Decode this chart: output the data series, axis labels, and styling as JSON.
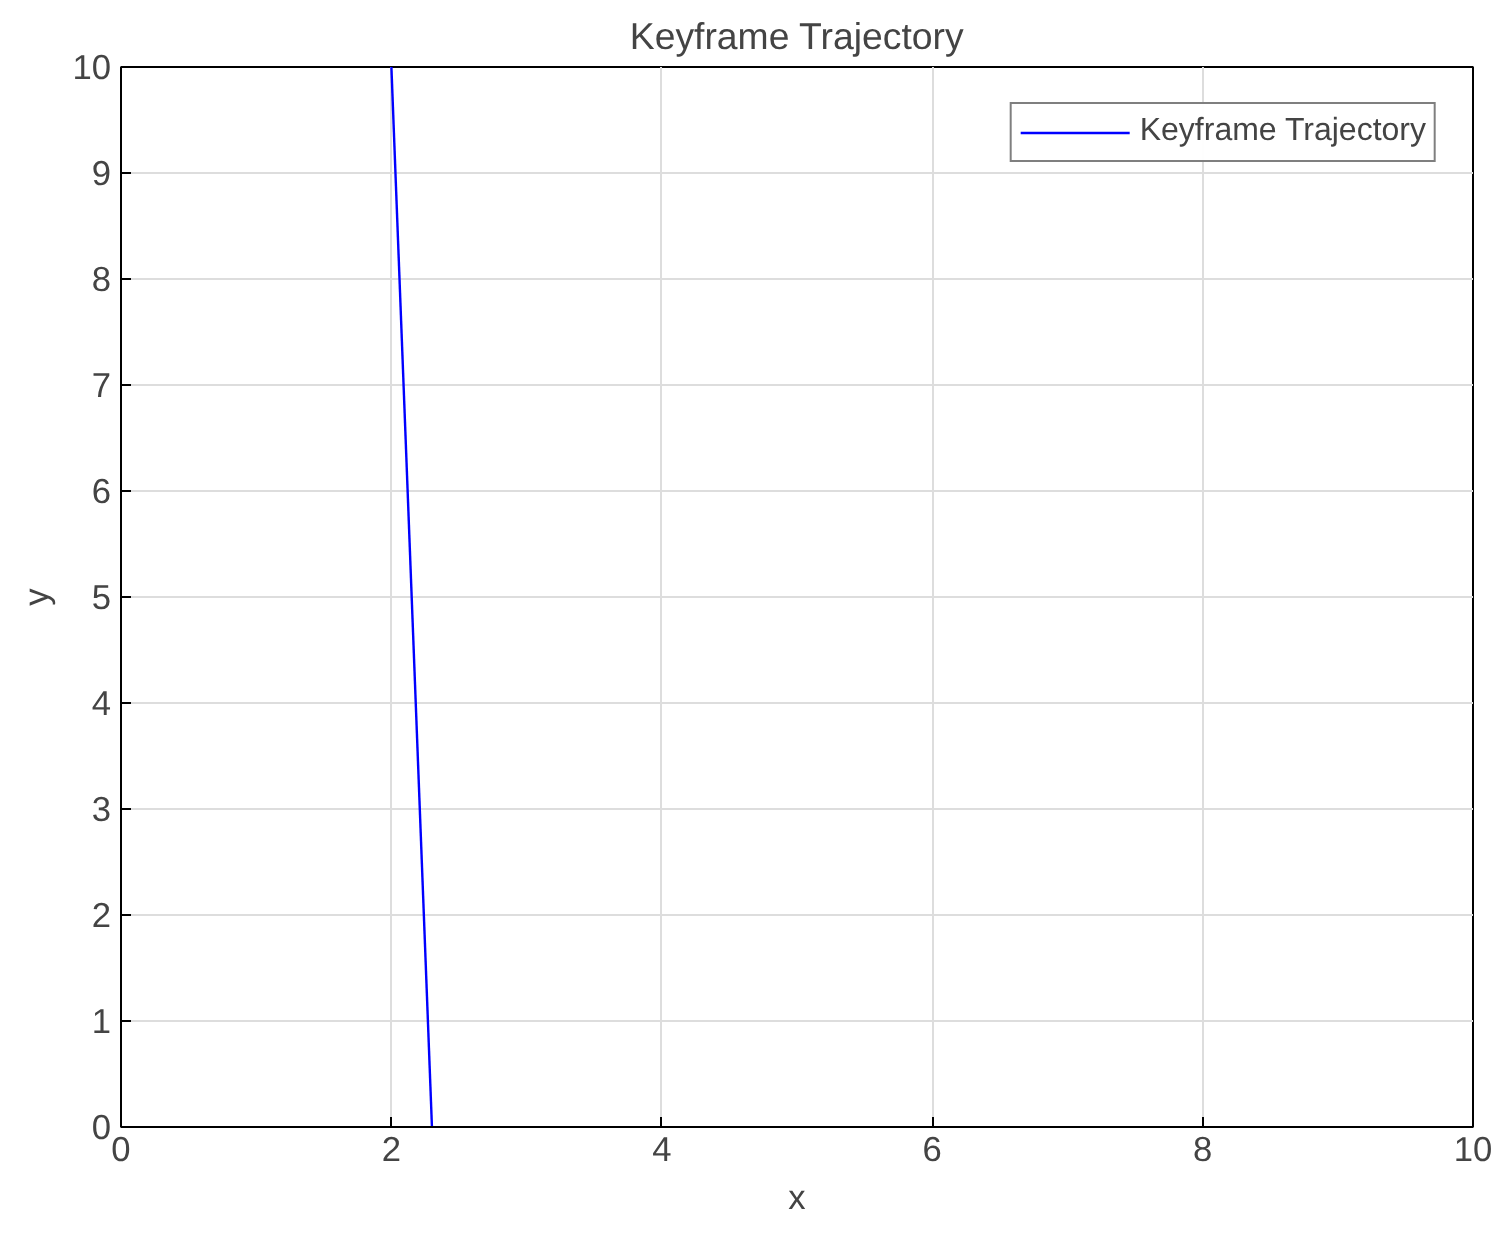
{
  "chart_data": {
    "type": "line",
    "title": "Keyframe Trajectory",
    "xlabel": "x",
    "ylabel": "y",
    "x": [
      2.0,
      2.3
    ],
    "series": [
      {
        "name": "Keyframe Trajectory",
        "color": "#0000ff",
        "values": [
          10,
          0
        ]
      }
    ],
    "xlim": [
      0,
      10
    ],
    "ylim": [
      0,
      10
    ],
    "xticks": [
      0,
      2,
      4,
      6,
      8,
      10
    ],
    "yticks": [
      0,
      1,
      2,
      3,
      4,
      5,
      6,
      7,
      8,
      9,
      10
    ],
    "grid": true,
    "legend": "top right",
    "line_style": "solid"
  }
}
